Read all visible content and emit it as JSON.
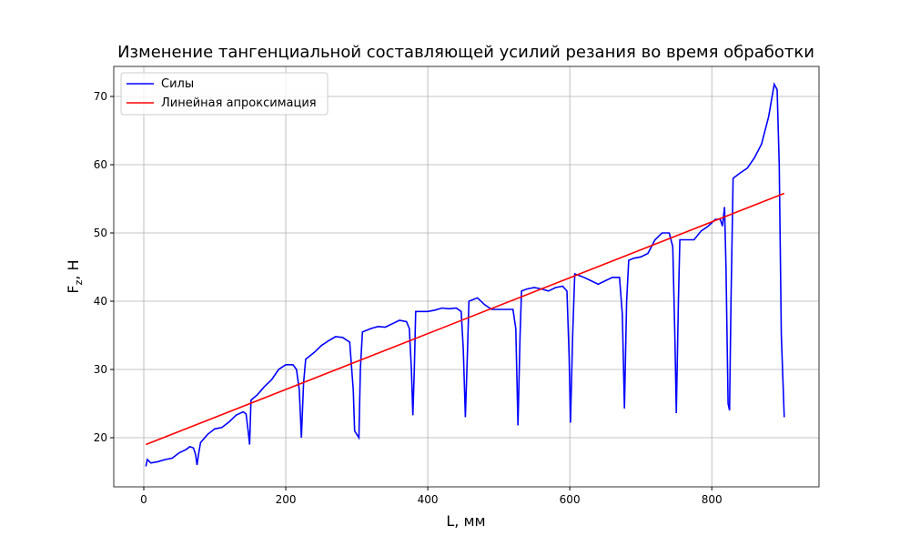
{
  "chart_data": {
    "type": "line",
    "title": "Изменение тангенциальной составляющей усилий резания во время обработки",
    "x_label": "L, мм",
    "y_label": "Fz, Н",
    "xlim": [
      -42.3,
      951
    ],
    "ylim": [
      12.8,
      74.4
    ],
    "xticks": [
      0,
      200,
      400,
      600,
      800
    ],
    "yticks": [
      20,
      30,
      40,
      50,
      60,
      70
    ],
    "grid": true,
    "legend": "upper left",
    "series": [
      {
        "name": "Силы",
        "color": "#0000ff",
        "x": [
          3,
          5,
          10,
          20,
          30,
          40,
          50,
          60,
          65,
          70,
          73,
          75,
          77,
          80,
          90,
          100,
          110,
          120,
          130,
          140,
          144,
          147,
          149,
          151,
          160,
          170,
          180,
          190,
          200,
          210,
          215,
          219,
          222,
          225,
          228,
          240,
          250,
          260,
          270,
          280,
          290,
          295,
          297,
          303,
          305,
          308,
          320,
          330,
          340,
          350,
          360,
          370,
          374,
          377,
          379,
          381,
          383,
          390,
          400,
          410,
          420,
          430,
          440,
          447,
          450,
          453,
          456,
          458,
          470,
          480,
          490,
          500,
          510,
          520,
          524,
          527,
          530,
          532,
          540,
          550,
          560,
          570,
          580,
          590,
          596,
          599,
          601,
          604,
          607,
          620,
          630,
          640,
          650,
          660,
          670,
          674,
          677,
          680,
          683,
          690,
          700,
          710,
          720,
          730,
          740,
          745,
          748,
          750,
          753,
          755,
          765,
          775,
          785,
          795,
          805,
          812,
          815,
          818,
          820,
          823,
          825,
          827,
          830,
          840,
          850,
          860,
          870,
          880,
          888,
          892,
          895,
          898,
          902
        ],
        "values": [
          15.8,
          16.8,
          16.3,
          16.5,
          16.8,
          17,
          17.8,
          18.3,
          18.7,
          18.5,
          17.5,
          16,
          17.5,
          19.3,
          20.5,
          21.3,
          21.5,
          22.3,
          23.3,
          23.8,
          23.5,
          21,
          19,
          25.5,
          26.3,
          27.5,
          28.5,
          30,
          30.7,
          30.7,
          30,
          27,
          20,
          28,
          31.5,
          32.5,
          33.5,
          34.2,
          34.8,
          34.7,
          34,
          27,
          21,
          20,
          30,
          35.5,
          36,
          36.3,
          36.2,
          36.7,
          37.2,
          37,
          36,
          30,
          23.3,
          30,
          38.5,
          38.5,
          38.5,
          38.7,
          39,
          38.9,
          39,
          38.5,
          33,
          23,
          33,
          40,
          40.5,
          39.5,
          38.8,
          38.8,
          38.8,
          38.8,
          36,
          21.8,
          35,
          41.5,
          41.8,
          42,
          41.8,
          41.5,
          42,
          42.2,
          41.5,
          32,
          22.2,
          35,
          44,
          43.5,
          43,
          42.5,
          43,
          43.5,
          43.5,
          38,
          24.3,
          40,
          46,
          46.3,
          46.5,
          47,
          49,
          50,
          50,
          48,
          35,
          23.6,
          40,
          49,
          49,
          49,
          50.3,
          51,
          52,
          52,
          51,
          53.8,
          45,
          25,
          24,
          40,
          58,
          58.8,
          59.5,
          61,
          63,
          67,
          71.8,
          71,
          60,
          35,
          23
        ]
      },
      {
        "name": "Линейная апроксимация",
        "color": "#ff0000",
        "x": [
          3,
          902
        ],
        "values": [
          19,
          55.8
        ]
      }
    ]
  }
}
